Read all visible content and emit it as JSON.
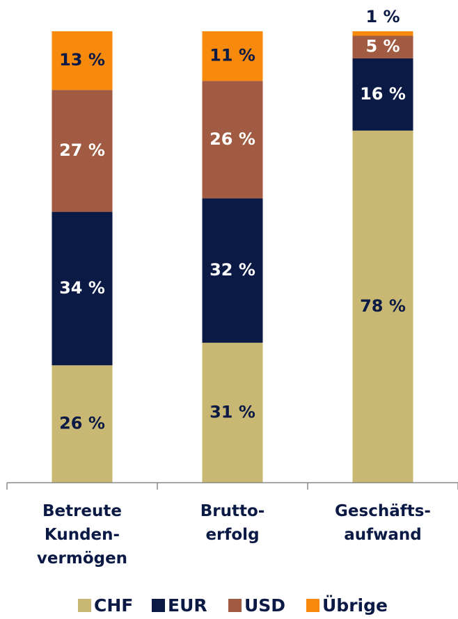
{
  "chart_data": {
    "type": "stacked_bar",
    "categories": [
      "Betreute\nKunden-\nvermögen",
      "Brutto-\nerfolg",
      "Geschäfts-\naufwand"
    ],
    "series": [
      {
        "name": "CHF",
        "color": "#c9b873",
        "values": [
          26,
          31,
          78
        ],
        "value_labels": [
          "26 %",
          "31 %",
          "78 %"
        ]
      },
      {
        "name": "EUR",
        "color": "#0b1a45",
        "values": [
          34,
          32,
          16
        ],
        "value_labels": [
          "34 %",
          "32 %",
          "16 %"
        ]
      },
      {
        "name": "USD",
        "color": "#a05b42",
        "values": [
          27,
          26,
          5
        ],
        "value_labels": [
          "27 %",
          "26 %",
          "5 %"
        ]
      },
      {
        "name": "Übrige",
        "color": "#f7890c",
        "values": [
          13,
          11,
          1
        ],
        "value_labels": [
          "13 %",
          "11 %",
          "1 %"
        ]
      }
    ],
    "ylim": [
      0,
      100
    ],
    "legend": "bottom"
  }
}
